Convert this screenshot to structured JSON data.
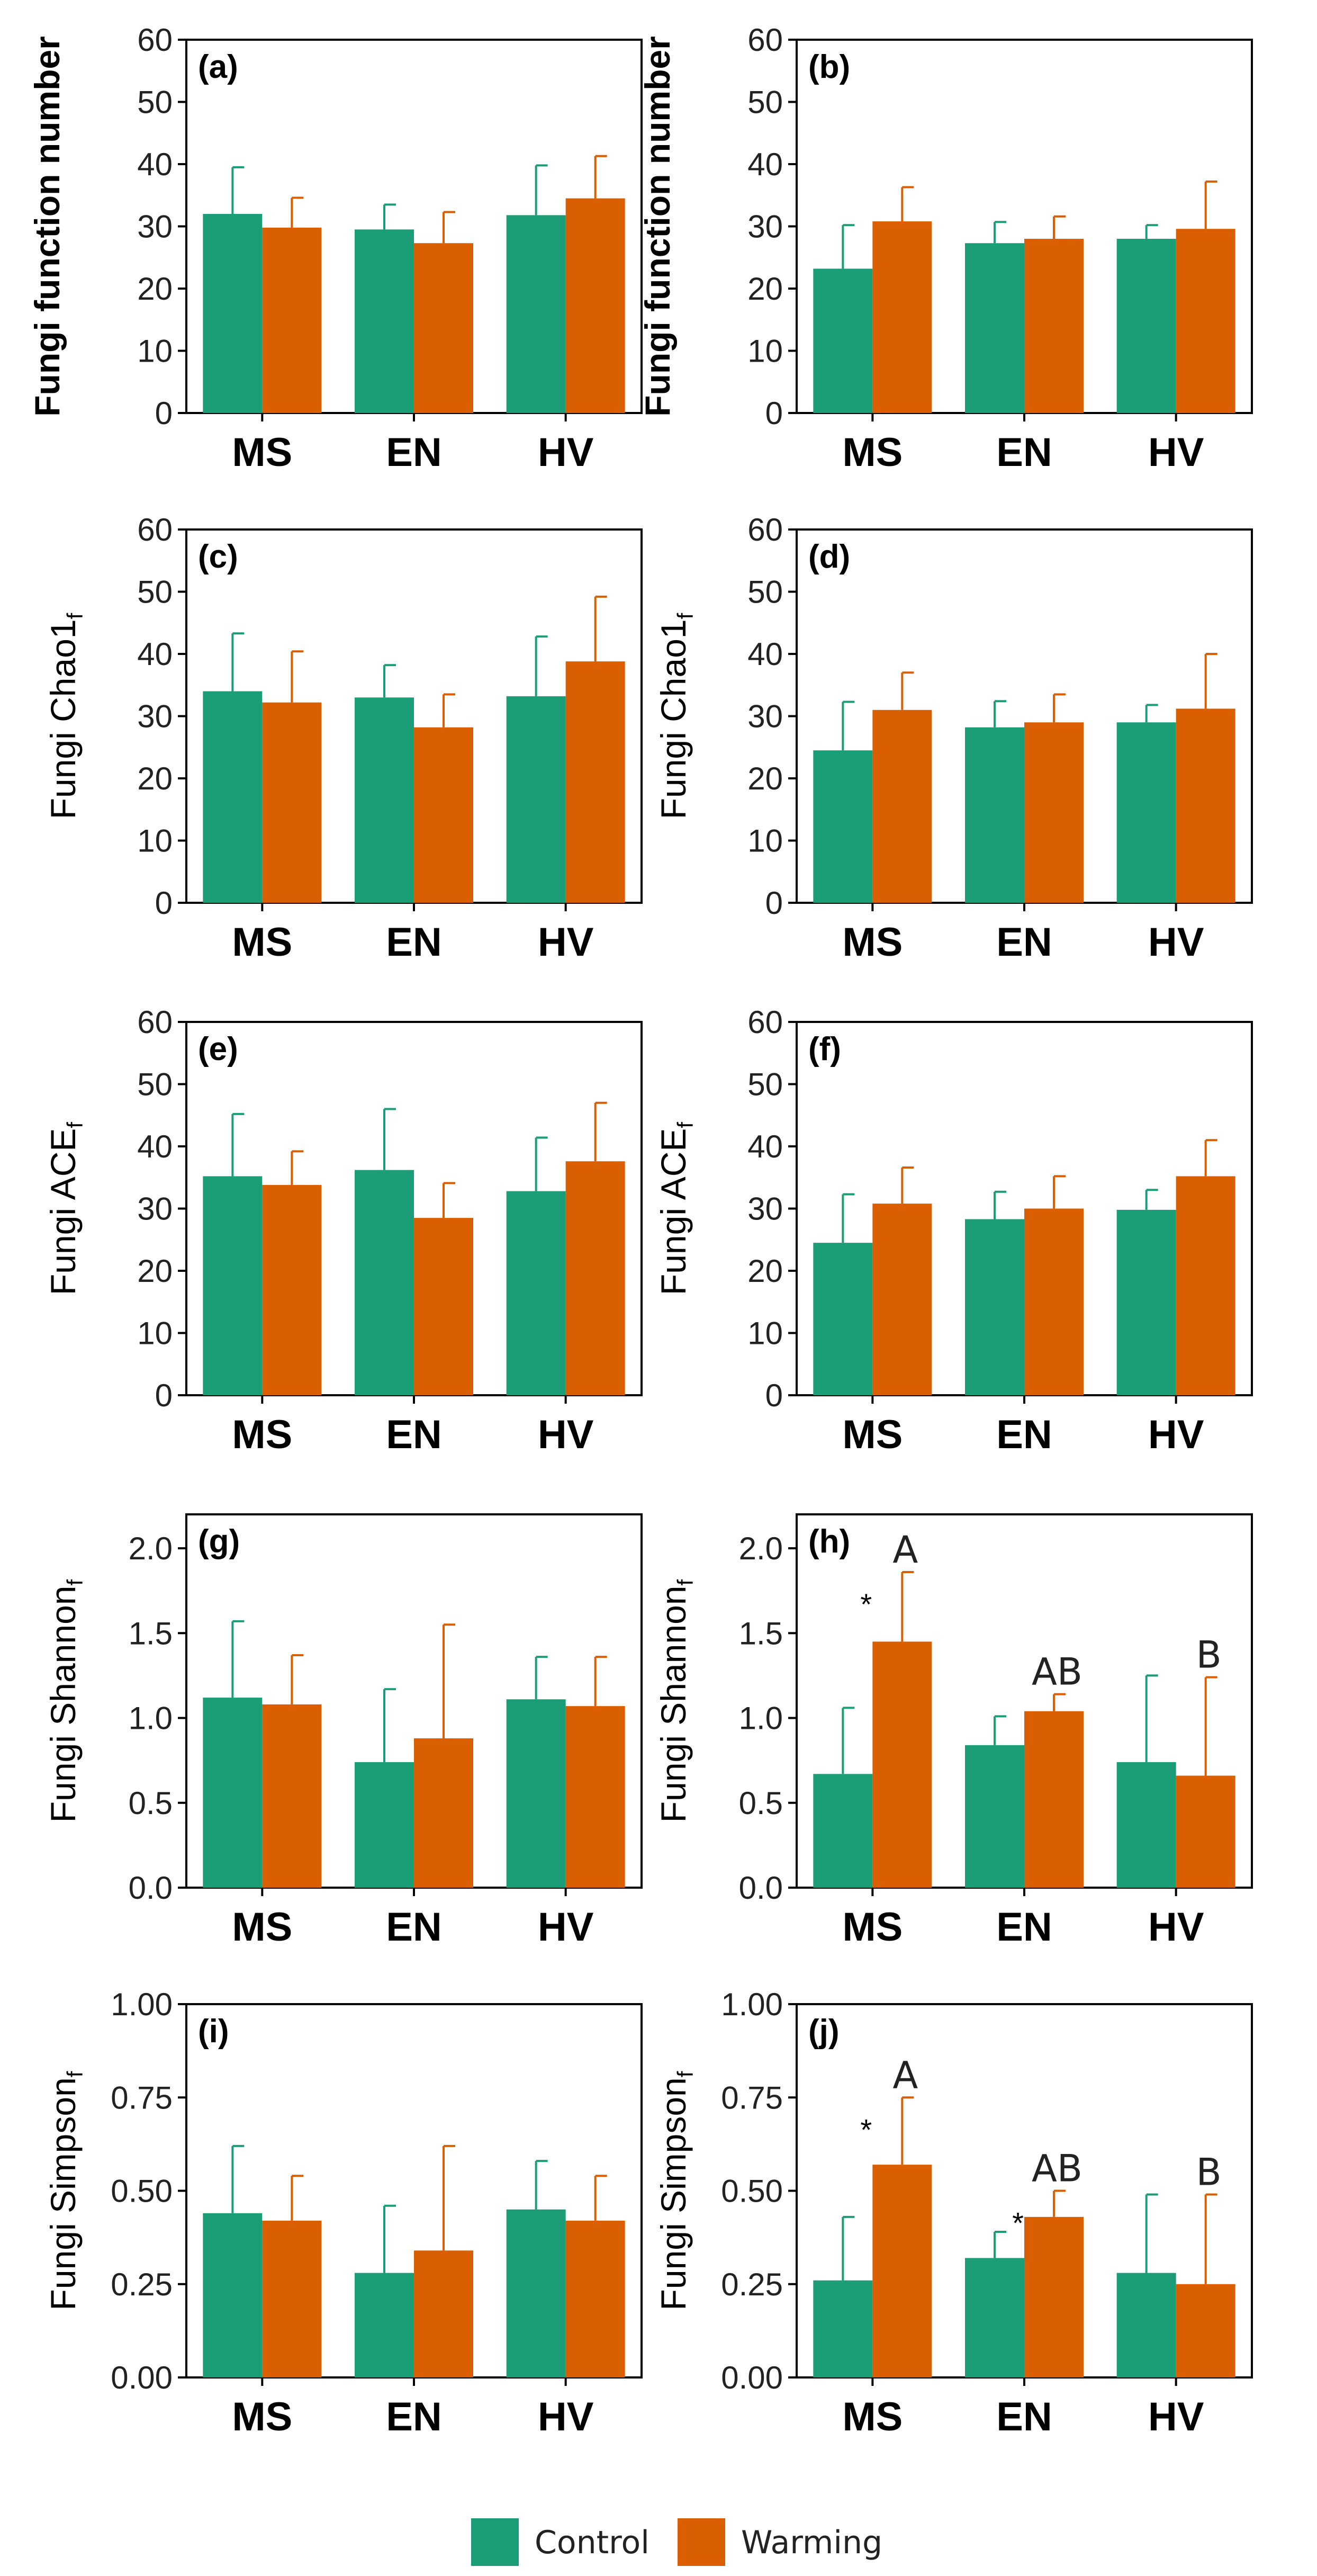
{
  "legend": {
    "control_label": "Control",
    "warming_label": "Warming",
    "control_color": "#1b9e77",
    "warming_color": "#d95f02"
  },
  "chart_data": [
    {
      "type": "bar",
      "tag": "(a)",
      "ylabel": "Fungi function number",
      "ylabel_sub": "",
      "ylabel_bold": true,
      "categories": [
        "MS",
        "EN",
        "HV"
      ],
      "ylim": [
        0,
        60
      ],
      "yticks": [
        "0",
        "10",
        "20",
        "30",
        "40",
        "50",
        "60"
      ],
      "yticks_values": [
        0,
        10,
        20,
        30,
        40,
        50,
        60
      ],
      "series": [
        {
          "name": "Control",
          "values": [
            32,
            29.5,
            31.8
          ],
          "errors": [
            7.5,
            4,
            8
          ]
        },
        {
          "name": "Warming",
          "values": [
            29.8,
            27.3,
            34.5
          ],
          "errors": [
            4.8,
            5,
            6.8
          ]
        }
      ],
      "significance": [],
      "stars": []
    },
    {
      "type": "bar",
      "tag": "(b)",
      "ylabel": "Fungi function number",
      "ylabel_sub": "",
      "ylabel_bold": true,
      "categories": [
        "MS",
        "EN",
        "HV"
      ],
      "ylim": [
        0,
        60
      ],
      "yticks": [
        "0",
        "10",
        "20",
        "30",
        "40",
        "50",
        "60"
      ],
      "yticks_values": [
        0,
        10,
        20,
        30,
        40,
        50,
        60
      ],
      "series": [
        {
          "name": "Control",
          "values": [
            23.2,
            27.3,
            28
          ],
          "errors": [
            7,
            3.4,
            2.2
          ]
        },
        {
          "name": "Warming",
          "values": [
            30.8,
            28,
            29.6
          ],
          "errors": [
            5.5,
            3.6,
            7.6
          ]
        }
      ],
      "significance": [],
      "stars": []
    },
    {
      "type": "bar",
      "tag": "(c)",
      "ylabel": "Fungi Chao1",
      "ylabel_sub": "f",
      "ylabel_bold": false,
      "categories": [
        "MS",
        "EN",
        "HV"
      ],
      "ylim": [
        0,
        60
      ],
      "yticks": [
        "0",
        "10",
        "20",
        "30",
        "40",
        "50",
        "60"
      ],
      "yticks_values": [
        0,
        10,
        20,
        30,
        40,
        50,
        60
      ],
      "series": [
        {
          "name": "Control",
          "values": [
            34,
            33,
            33.2
          ],
          "errors": [
            9.3,
            5.2,
            9.6
          ]
        },
        {
          "name": "Warming",
          "values": [
            32.2,
            28.2,
            38.8
          ],
          "errors": [
            8.2,
            5.3,
            10.4
          ]
        }
      ],
      "significance": [],
      "stars": []
    },
    {
      "type": "bar",
      "tag": "(d)",
      "ylabel": "Fungi Chao1",
      "ylabel_sub": "f",
      "ylabel_bold": false,
      "categories": [
        "MS",
        "EN",
        "HV"
      ],
      "ylim": [
        0,
        60
      ],
      "yticks": [
        "0",
        "10",
        "20",
        "30",
        "40",
        "50",
        "60"
      ],
      "yticks_values": [
        0,
        10,
        20,
        30,
        40,
        50,
        60
      ],
      "series": [
        {
          "name": "Control",
          "values": [
            24.5,
            28.2,
            29
          ],
          "errors": [
            7.8,
            4.2,
            2.8
          ]
        },
        {
          "name": "Warming",
          "values": [
            31,
            29,
            31.2
          ],
          "errors": [
            6,
            4.5,
            8.8
          ]
        }
      ],
      "significance": [],
      "stars": []
    },
    {
      "type": "bar",
      "tag": "(e)",
      "ylabel": "Fungi ACE",
      "ylabel_sub": "f",
      "ylabel_bold": false,
      "categories": [
        "MS",
        "EN",
        "HV"
      ],
      "ylim": [
        0,
        60
      ],
      "yticks": [
        "0",
        "10",
        "20",
        "30",
        "40",
        "50",
        "60"
      ],
      "yticks_values": [
        0,
        10,
        20,
        30,
        40,
        50,
        60
      ],
      "series": [
        {
          "name": "Control",
          "values": [
            35.2,
            36.2,
            32.8
          ],
          "errors": [
            10,
            9.8,
            8.6
          ]
        },
        {
          "name": "Warming",
          "values": [
            33.8,
            28.5,
            37.6
          ],
          "errors": [
            5.4,
            5.6,
            9.4
          ]
        }
      ],
      "significance": [],
      "stars": []
    },
    {
      "type": "bar",
      "tag": "(f)",
      "ylabel": "Fungi ACE",
      "ylabel_sub": "f",
      "ylabel_bold": false,
      "categories": [
        "MS",
        "EN",
        "HV"
      ],
      "ylim": [
        0,
        60
      ],
      "yticks": [
        "0",
        "10",
        "20",
        "30",
        "40",
        "50",
        "60"
      ],
      "yticks_values": [
        0,
        10,
        20,
        30,
        40,
        50,
        60
      ],
      "series": [
        {
          "name": "Control",
          "values": [
            24.5,
            28.3,
            29.8
          ],
          "errors": [
            7.8,
            4.4,
            3.2
          ]
        },
        {
          "name": "Warming",
          "values": [
            30.8,
            30,
            35.2
          ],
          "errors": [
            5.8,
            5.2,
            5.8
          ]
        }
      ],
      "significance": [],
      "stars": []
    },
    {
      "type": "bar",
      "tag": "(g)",
      "ylabel": "Fungi Shannon",
      "ylabel_sub": "f",
      "ylabel_bold": false,
      "categories": [
        "MS",
        "EN",
        "HV"
      ],
      "ylim": [
        0,
        2.2
      ],
      "yticks": [
        "0.0",
        "0.5",
        "1.0",
        "1.5",
        "2.0"
      ],
      "yticks_values": [
        0,
        0.5,
        1,
        1.5,
        2
      ],
      "series": [
        {
          "name": "Control",
          "values": [
            1.12,
            0.74,
            1.11
          ],
          "errors": [
            0.45,
            0.43,
            0.25
          ]
        },
        {
          "name": "Warming",
          "values": [
            1.08,
            0.88,
            1.07
          ],
          "errors": [
            0.29,
            0.67,
            0.29
          ]
        }
      ],
      "significance": [],
      "stars": []
    },
    {
      "type": "bar",
      "tag": "(h)",
      "ylabel": "Fungi Shannon",
      "ylabel_sub": "f",
      "ylabel_bold": false,
      "categories": [
        "MS",
        "EN",
        "HV"
      ],
      "ylim": [
        0,
        2.2
      ],
      "yticks": [
        "0.0",
        "0.5",
        "1.0",
        "1.5",
        "2.0"
      ],
      "yticks_values": [
        0,
        0.5,
        1,
        1.5,
        2
      ],
      "series": [
        {
          "name": "Control",
          "values": [
            0.67,
            0.84,
            0.74
          ],
          "errors": [
            0.39,
            0.17,
            0.51
          ]
        },
        {
          "name": "Warming",
          "values": [
            1.45,
            1.04,
            0.66
          ],
          "errors": [
            0.41,
            0.1,
            0.58
          ]
        }
      ],
      "significance": [
        "A",
        "AB",
        "B"
      ],
      "stars": [
        {
          "category": 0,
          "text": "*"
        }
      ]
    },
    {
      "type": "bar",
      "tag": "(i)",
      "ylabel": "Fungi Simpson",
      "ylabel_sub": "f",
      "ylabel_bold": false,
      "categories": [
        "MS",
        "EN",
        "HV"
      ],
      "ylim": [
        0,
        1
      ],
      "yticks": [
        "0.00",
        "0.25",
        "0.50",
        "0.75",
        "1.00"
      ],
      "yticks_values": [
        0,
        0.25,
        0.5,
        0.75,
        1
      ],
      "series": [
        {
          "name": "Control",
          "values": [
            0.44,
            0.28,
            0.45
          ],
          "errors": [
            0.18,
            0.18,
            0.13
          ]
        },
        {
          "name": "Warming",
          "values": [
            0.42,
            0.34,
            0.42
          ],
          "errors": [
            0.12,
            0.28,
            0.12
          ]
        }
      ],
      "significance": [],
      "stars": []
    },
    {
      "type": "bar",
      "tag": "(j)",
      "ylabel": "Fungi Simpson",
      "ylabel_sub": "f",
      "ylabel_bold": false,
      "categories": [
        "MS",
        "EN",
        "HV"
      ],
      "ylim": [
        0,
        1
      ],
      "yticks": [
        "0.00",
        "0.25",
        "0.50",
        "0.75",
        "1.00"
      ],
      "yticks_values": [
        0,
        0.25,
        0.5,
        0.75,
        1
      ],
      "series": [
        {
          "name": "Control",
          "values": [
            0.26,
            0.32,
            0.28
          ],
          "errors": [
            0.17,
            0.07,
            0.21
          ]
        },
        {
          "name": "Warming",
          "values": [
            0.57,
            0.43,
            0.25
          ],
          "errors": [
            0.18,
            0.07,
            0.24
          ]
        }
      ],
      "significance": [
        "A",
        "AB",
        "B"
      ],
      "stars": [
        {
          "category": 0,
          "text": "*"
        },
        {
          "category": 1,
          "text": "*"
        }
      ]
    }
  ]
}
